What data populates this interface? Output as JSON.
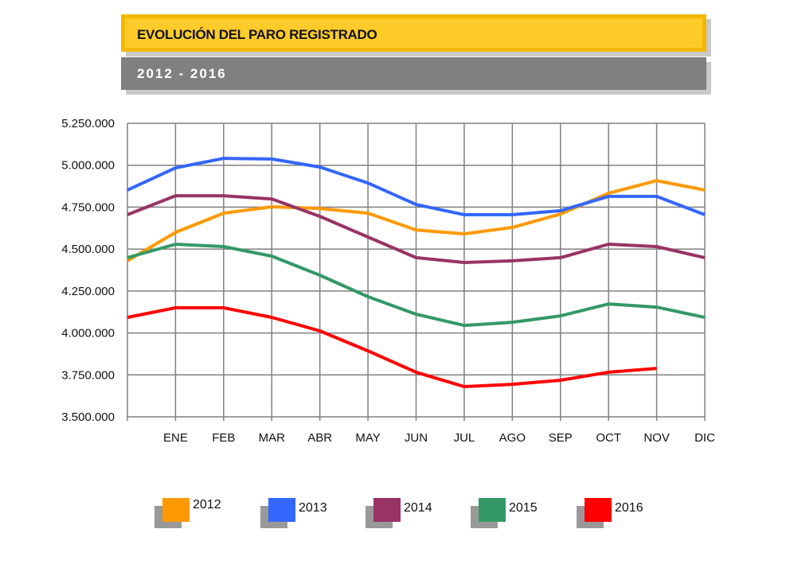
{
  "header": {
    "title": "EVOLUCIÓN DEL PARO REGISTRADO",
    "subtitle": "2012 - 2016"
  },
  "colors": {
    "title_bg": "#ffcb2a",
    "title_border": "#f2b700",
    "subtitle_bg": "#808080",
    "grid": "#808080"
  },
  "chart_data": {
    "type": "line",
    "title": "EVOLUCIÓN DEL PARO REGISTRADO",
    "subtitle": "2012 - 2016",
    "categories": [
      "",
      "ENE",
      "FEB",
      "MAR",
      "ABR",
      "MAY",
      "JUN",
      "JUL",
      "AGO",
      "SEP",
      "OCT",
      "NOV",
      "DIC"
    ],
    "ylim": [
      3500000,
      5250000
    ],
    "yticks": [
      3500000,
      3750000,
      4000000,
      4250000,
      4500000,
      4750000,
      5000000,
      5250000
    ],
    "ytick_labels": [
      "3.500.000",
      "3.750.000",
      "4.000.000",
      "4.250.000",
      "4.500.000",
      "4.750.000",
      "5.000.000",
      "5.250.000"
    ],
    "grid": true,
    "legend": "bottom",
    "series": [
      {
        "name": "2012",
        "color": "#ff9900",
        "values": [
          4430000,
          4600000,
          4714000,
          4752000,
          4742000,
          4714000,
          4614000,
          4591000,
          4629000,
          4709000,
          4833000,
          4908000,
          4852000
        ]
      },
      {
        "name": "2013",
        "color": "#3366ff",
        "values": [
          4852000,
          4984000,
          5041000,
          5037000,
          4989000,
          4894000,
          4766000,
          4705000,
          4705000,
          4729000,
          4814000,
          4814000,
          4705000
        ]
      },
      {
        "name": "2014",
        "color": "#993366",
        "values": [
          4705000,
          4818000,
          4818000,
          4799000,
          4695000,
          4572000,
          4449000,
          4420000,
          4430000,
          4449000,
          4529000,
          4515000,
          4449000
        ]
      },
      {
        "name": "2015",
        "color": "#339966",
        "values": [
          4449000,
          4529000,
          4515000,
          4458000,
          4344000,
          4216000,
          4112000,
          4045000,
          4064000,
          4102000,
          4173000,
          4154000,
          4093000
        ]
      },
      {
        "name": "2016",
        "color": "#ff0000",
        "values": [
          4093000,
          4150000,
          4150000,
          4093000,
          4012000,
          3893000,
          3766000,
          3680000,
          3694000,
          3718000,
          3766000,
          3789000,
          null
        ]
      }
    ]
  }
}
